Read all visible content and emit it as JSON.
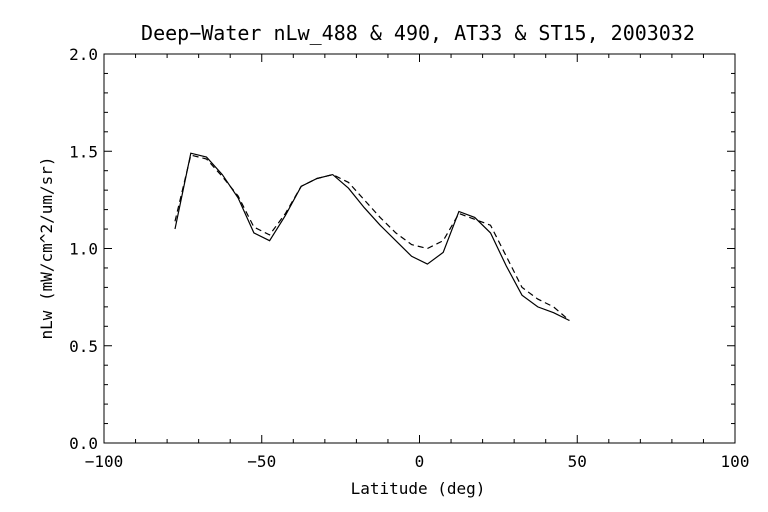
{
  "chart_data": {
    "type": "line",
    "title": "Deep−Water nLw_488 & 490, AT33 & ST15, 2003032",
    "xlabel": "Latitude (deg)",
    "ylabel": "nLw (mW/cm^2/um/sr)",
    "xlim": [
      -100,
      100
    ],
    "ylim": [
      0.0,
      2.0
    ],
    "x_ticks": [
      -100,
      -50,
      0,
      50,
      100
    ],
    "x_tick_labels": [
      "−100",
      "−50",
      "0",
      "50",
      "100"
    ],
    "y_ticks": [
      0.0,
      0.5,
      1.0,
      1.5,
      2.0
    ],
    "y_tick_labels": [
      "0.0",
      "0.5",
      "1.0",
      "1.5",
      "2.0"
    ],
    "x_minor_step": 10,
    "y_minor_step": 0.1,
    "grid": false,
    "series": [
      {
        "style": "solid",
        "x": [
          -77.5,
          -72.5,
          -67.5,
          -62.5,
          -57.5,
          -52.5,
          -47.5,
          -42.5,
          -37.5,
          -32.5,
          -27.5,
          -22.5,
          -17.5,
          -12.5,
          -7.5,
          -2.5,
          2.5,
          7.5,
          12.5,
          17.5,
          22.5,
          27.5,
          32.5,
          37.5,
          42.5,
          47.5
        ],
        "y": [
          1.1,
          1.49,
          1.47,
          1.38,
          1.26,
          1.08,
          1.04,
          1.17,
          1.32,
          1.36,
          1.38,
          1.31,
          1.21,
          1.12,
          1.04,
          0.96,
          0.92,
          0.98,
          1.19,
          1.16,
          1.08,
          0.91,
          0.76,
          0.7,
          0.67,
          0.63
        ]
      },
      {
        "style": "dashed",
        "x": [
          -77.5,
          -72.5,
          -67.5,
          -62.5,
          -57.5,
          -52.5,
          -47.5,
          -42.5,
          -37.5,
          -32.5,
          -27.5,
          -22.5,
          -17.5,
          -12.5,
          -7.5,
          -2.5,
          2.5,
          7.5,
          12.5,
          17.5,
          22.5,
          27.5,
          32.5,
          37.5,
          42.5,
          47.5
        ],
        "y": [
          1.14,
          1.48,
          1.46,
          1.37,
          1.27,
          1.11,
          1.07,
          1.18,
          1.32,
          1.36,
          1.38,
          1.34,
          1.25,
          1.16,
          1.08,
          1.02,
          1.0,
          1.04,
          1.18,
          1.15,
          1.12,
          0.96,
          0.8,
          0.74,
          0.7,
          0.63
        ]
      }
    ]
  }
}
